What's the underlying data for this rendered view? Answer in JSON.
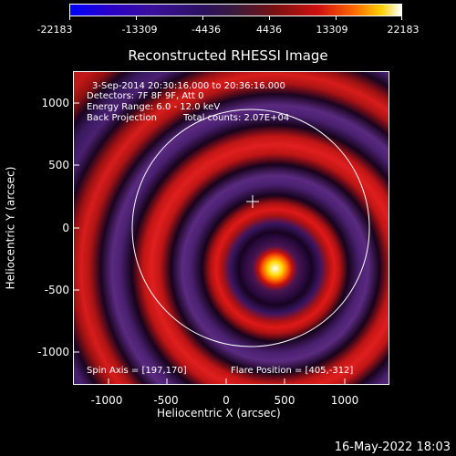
{
  "colorbar": {
    "labels": [
      "-22183",
      "-13309",
      "-4436",
      "4436",
      "13309",
      "22183"
    ]
  },
  "title": "Reconstructed RHESSI Image",
  "info": {
    "time_range": "3-Sep-2014 20:30:16.000 to 20:36:16.000",
    "detectors": "Detectors: 7F 8F 9F, Att 0",
    "energy_range": "Energy Range: 6.0 - 12.0 keV",
    "method": "Back Projection",
    "total_counts": "Total counts: 2.07E+04",
    "spin_axis": "Spin Axis = [197,170]",
    "flare_position": "Flare Position = [405,-312]"
  },
  "axes": {
    "xlabel": "Heliocentric X (arcsec)",
    "ylabel": "Heliocentric Y (arcsec)",
    "x_ticks": [
      "-1000",
      "-500",
      "0",
      "500",
      "1000"
    ],
    "y_ticks": [
      "1000",
      "500",
      "0",
      "-500",
      "-1000"
    ]
  },
  "footer": "16-May-2022 18:03",
  "colors": {
    "background": "#000000",
    "foreground": "#ffffff"
  }
}
